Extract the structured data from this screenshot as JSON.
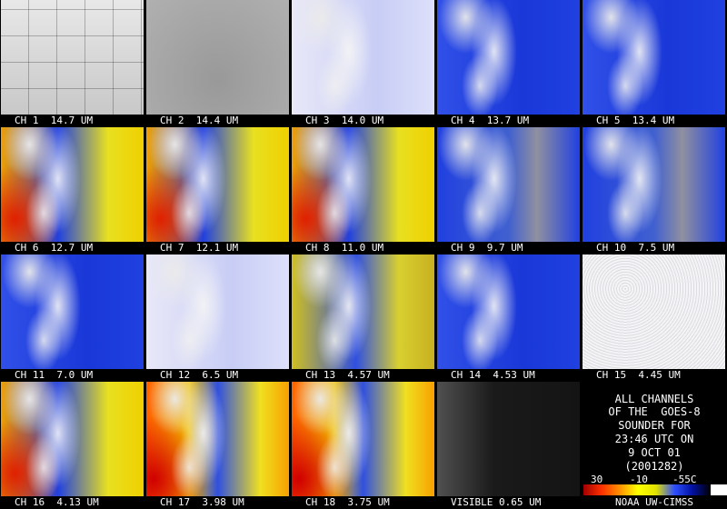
{
  "panels": [
    {
      "caption": "CH 1  14.7 UM"
    },
    {
      "caption": "CH 2  14.4 UM"
    },
    {
      "caption": "CH 3  14.0 UM"
    },
    {
      "caption": "CH 4  13.7 UM"
    },
    {
      "caption": "CH 5  13.4 UM"
    },
    {
      "caption": "CH 6  12.7 UM"
    },
    {
      "caption": "CH 7  12.1 UM"
    },
    {
      "caption": "CH 8  11.0 UM"
    },
    {
      "caption": "CH 9  9.7 UM"
    },
    {
      "caption": "CH 10  7.5 UM"
    },
    {
      "caption": "CH 11  7.0 UM"
    },
    {
      "caption": "CH 12  6.5 UM"
    },
    {
      "caption": "CH 13  4.57 UM"
    },
    {
      "caption": "CH 14  4.53 UM"
    },
    {
      "caption": "CH 15  4.45 UM"
    },
    {
      "caption": "CH 16  4.13 UM"
    },
    {
      "caption": "CH 17  3.98 UM"
    },
    {
      "caption": "CH 18  3.75 UM"
    },
    {
      "caption": "VISIBLE 0.65 UM"
    }
  ],
  "info": {
    "lines": [
      "ALL CHANNELS",
      "OF THE  GOES-8",
      "SOUNDER FOR",
      "23:46 UTC ON",
      "9 OCT 01",
      "(2001282)"
    ],
    "scale_labels": [
      "30",
      "-10",
      "-55C"
    ],
    "credit": "NOAA UW-CIMSS"
  }
}
